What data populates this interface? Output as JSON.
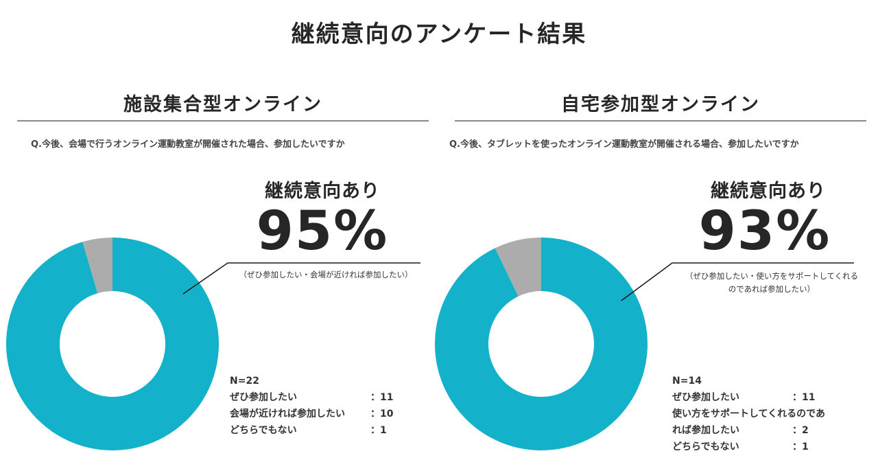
{
  "title": "継続意向のアンケート結果",
  "colors": {
    "yes": "#13b1ca",
    "no": "#acacac"
  },
  "panels": [
    {
      "heading": "施設集合型オンライン",
      "question": "Q.今後、会場で行うオンライン運動教室が開催された場合、参加したいですか",
      "highlight_label": "継続意向あり",
      "highlight_value": "95%",
      "highlight_note": "（ぜひ参加したい・会場が近ければ参加したい）",
      "n_label": "N=22",
      "rows": [
        {
          "label": "ぜひ参加したい",
          "value": "：11"
        },
        {
          "label": "会場が近ければ参加したい",
          "value": "：10"
        },
        {
          "label": "どちらでもない",
          "value": "：1"
        }
      ]
    },
    {
      "heading": "自宅参加型オンライン",
      "question": "Q.今後、タブレットを使ったオンライン運動教室が開催される場合、参加したいですか",
      "highlight_label": "継続意向あり",
      "highlight_value": "93%",
      "highlight_note_line1": "（ぜひ参加したい・使い方をサポートしてくれる",
      "highlight_note_line2": "のであれば参加したい）",
      "n_label": "N=14",
      "rows": [
        {
          "label": "ぜひ参加したい",
          "value": "：11"
        },
        {
          "label": "使い方をサポートしてくれるのであ",
          "value": ""
        },
        {
          "label": "れば参加したい",
          "value": "：2"
        },
        {
          "label": "どちらでもない",
          "value": "：1"
        }
      ]
    }
  ],
  "chart_data": [
    {
      "type": "pie",
      "donut": true,
      "title": "施設集合型オンライン",
      "categories": [
        "継続意向あり",
        "どちらでもない"
      ],
      "values": [
        21,
        1
      ]
    },
    {
      "type": "pie",
      "donut": true,
      "title": "自宅参加型オンライン",
      "categories": [
        "継続意向あり",
        "どちらでもない"
      ],
      "values": [
        13,
        1
      ]
    }
  ]
}
